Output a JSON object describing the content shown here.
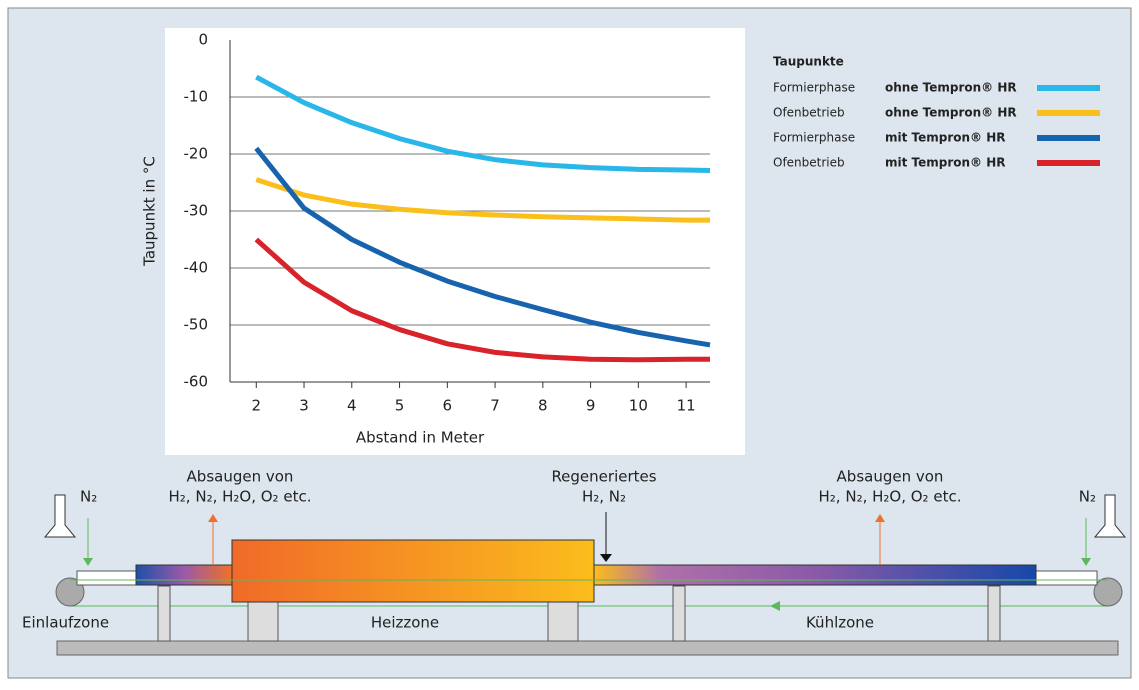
{
  "chart_data": {
    "type": "line",
    "y_label": "Taupunkt in °C",
    "x_label": "Abstand in Meter",
    "legend_title": "Taupunkte",
    "x": [
      2,
      3,
      4,
      5,
      6,
      7,
      8,
      9,
      10,
      11,
      11.5
    ],
    "series": [
      {
        "name": "Formierphase",
        "variant": "ohne Tempron® HR",
        "color": "#29b6e8",
        "values": [
          -6.5,
          -11,
          -14.5,
          -17.3,
          -19.5,
          -21,
          -21.9,
          -22.4,
          -22.7,
          -22.8,
          -22.9
        ]
      },
      {
        "name": "Ofenbetrieb",
        "variant": "ohne Tempron® HR",
        "color": "#fbbf1c",
        "values": [
          -24.5,
          -27.2,
          -28.8,
          -29.7,
          -30.3,
          -30.7,
          -31,
          -31.2,
          -31.4,
          -31.6,
          -31.6
        ]
      },
      {
        "name": "Formierphase",
        "variant": "mit Tempron® HR",
        "color": "#1763ad",
        "values": [
          -19,
          -29.5,
          -35,
          -39,
          -42.3,
          -45,
          -47.3,
          -49.5,
          -51.3,
          -52.8,
          -53.5
        ]
      },
      {
        "name": "Ofenbetrieb",
        "variant": "mit Tempron® HR",
        "color": "#d8232a",
        "values": [
          -35,
          -42.5,
          -47.5,
          -50.8,
          -53.3,
          -54.8,
          -55.6,
          -56,
          -56.1,
          -56,
          -56
        ]
      }
    ],
    "xlim": [
      1.45,
      11.5
    ],
    "xticks": [
      2,
      3,
      4,
      5,
      6,
      7,
      8,
      9,
      10,
      11
    ],
    "ylim": [
      -60,
      0
    ],
    "yticks": [
      0,
      -10,
      -20,
      -30,
      -40,
      -50,
      -60
    ],
    "grid": true
  },
  "diagram": {
    "left_suction": {
      "line1": "Absaugen von",
      "line2": "H₂, N₂, H₂O, O₂ etc."
    },
    "regenerated": {
      "line1": "Regeneriertes",
      "line2": "H₂, N₂"
    },
    "right_suction": {
      "line1": "Absaugen von",
      "line2": "H₂, N₂, H₂O, O₂ etc."
    },
    "n2_left": "N₂",
    "n2_right": "N₂",
    "zones": [
      "Einlaufzone",
      "Heizzone",
      "Kühlzone"
    ]
  }
}
